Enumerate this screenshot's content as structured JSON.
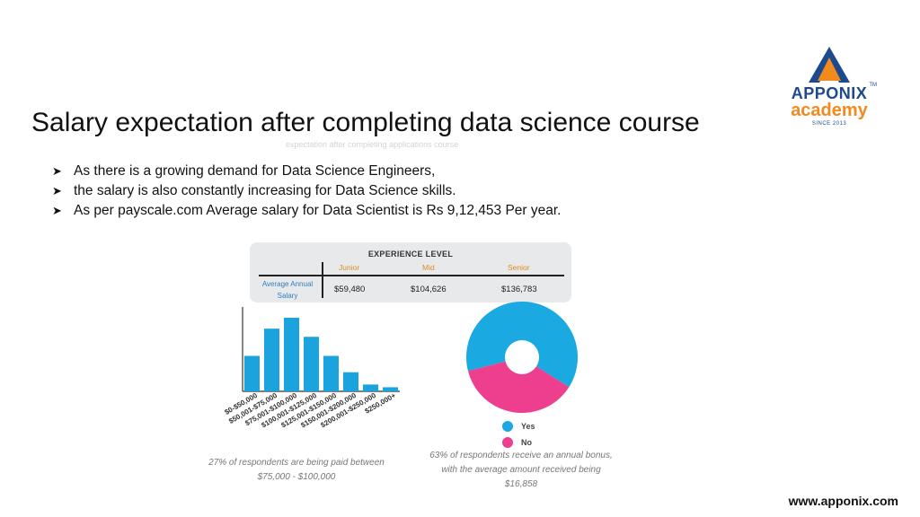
{
  "slide": {
    "title": "Salary expectation after completing data science course",
    "ghost_text": "expectation after completing applications course",
    "bullets": [
      "As there is a growing demand for Data Science Engineers,",
      "the salary is also constantly increasing for Data Science skills.",
      "As per payscale.com Average salary for Data Scientist is Rs 9,12,453 Per year."
    ],
    "footer_url": "www.apponix.com"
  },
  "logo": {
    "brand": "APPONIX",
    "sub": "academy",
    "since": "SINCE 2013",
    "tm": "TM",
    "colors": {
      "blue": "#1c4a8c",
      "orange": "#f28a1d"
    }
  },
  "experience": {
    "header": "EXPERIENCE LEVEL",
    "row_label_line1": "Average Annual",
    "row_label_line2": "Salary",
    "levels": [
      "Junior",
      "Mid",
      "Senior"
    ],
    "values": [
      "$59,480",
      "$104,626",
      "$136,783"
    ]
  },
  "chart_data": [
    {
      "type": "bar",
      "categories": [
        "$0-$50,000",
        "$50,001-$75,000",
        "$75,001-$100,000",
        "$100,001-$125,000",
        "$125,001-$150,000",
        "$150,001-$200,000",
        "$200,001-$250,000",
        "$250,000+"
      ],
      "values": [
        13,
        23,
        27,
        20,
        13,
        7,
        2.5,
        1.5
      ],
      "color": "#1aa3dd",
      "caption_line1": "27% of respondents are being paid between",
      "caption_line2": "$75,000 - $100,000"
    },
    {
      "type": "pie",
      "series": [
        {
          "name": "Yes",
          "values": [
            63
          ]
        },
        {
          "name": "No",
          "values": [
            37
          ]
        }
      ],
      "colors": [
        "#1aa9e0",
        "#ee3f8f"
      ],
      "legend": "bottom",
      "caption_line1": "63% of respondents receive an annual bonus,",
      "caption_line2": "with the average amount received being",
      "caption_line3": "$16,858"
    }
  ]
}
